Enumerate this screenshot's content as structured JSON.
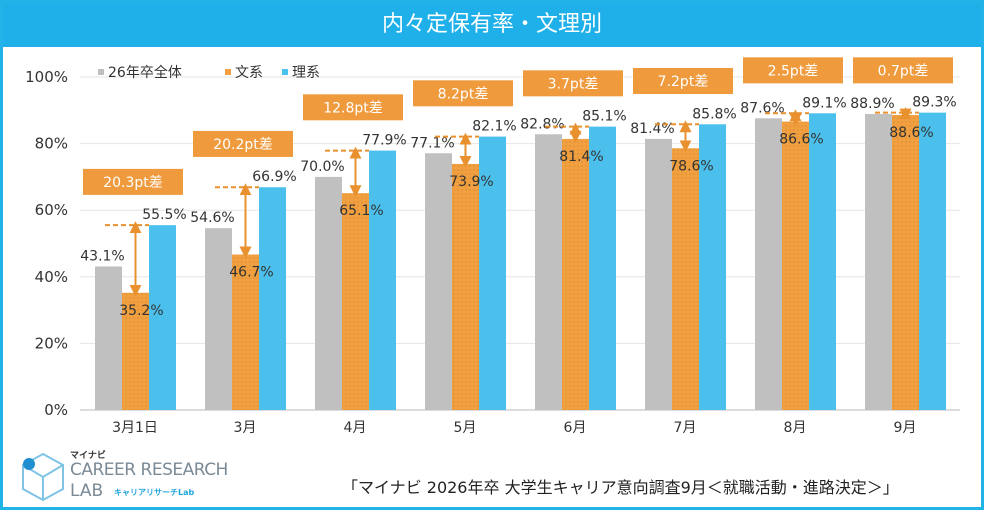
{
  "title": "内々定保有率・文理別",
  "chart_data": {
    "type": "bar",
    "title": "内々定保有率・文理別",
    "categories": [
      "3月1日",
      "3月",
      "4月",
      "5月",
      "6月",
      "7月",
      "8月",
      "9月"
    ],
    "series": [
      {
        "name": "26年卒全体",
        "color": "#c0c0c0",
        "values": [
          43.1,
          54.6,
          70.0,
          77.1,
          82.8,
          81.4,
          87.6,
          88.9
        ],
        "labels": [
          "43.1%",
          "54.6%",
          "70.0%",
          "77.1%",
          "82.8%",
          "81.4%",
          "87.6%",
          "88.9%"
        ]
      },
      {
        "name": "文系",
        "color": "#f0a040",
        "values": [
          35.2,
          46.7,
          65.1,
          73.9,
          81.4,
          78.6,
          86.6,
          88.6
        ],
        "labels": [
          "35.2%",
          "46.7%",
          "65.1%",
          "73.9%",
          "81.4%",
          "78.6%",
          "86.6%",
          "88.6%"
        ]
      },
      {
        "name": "理系",
        "color": "#4cc0ec",
        "values": [
          55.5,
          66.9,
          77.9,
          82.1,
          85.1,
          85.8,
          89.1,
          89.3
        ],
        "labels": [
          "55.5%",
          "66.9%",
          "77.9%",
          "82.1%",
          "85.1%",
          "85.8%",
          "89.1%",
          "89.3%"
        ]
      }
    ],
    "differences": [
      "20.3pt差",
      "20.2pt差",
      "12.8pt差",
      "8.2pt差",
      "3.7pt差",
      "7.2pt差",
      "2.5pt差",
      "0.7pt差"
    ],
    "yticks": [
      "0%",
      "20%",
      "40%",
      "60%",
      "80%",
      "100%"
    ],
    "ylim": [
      0,
      100
    ],
    "grid": true,
    "legend": "top-left",
    "xlabel": "",
    "ylabel": ""
  },
  "logo": {
    "brand": "マイナビ",
    "line1": "CAREER RESEARCH",
    "line2": "LAB",
    "kana": "キャリアリサーチLab"
  },
  "source": "「マイナビ 2026年卒 大学生キャリア意向調査9月＜就職活動・進路決定＞」"
}
